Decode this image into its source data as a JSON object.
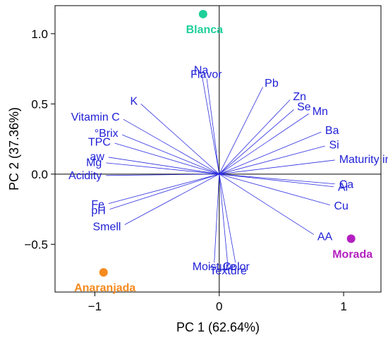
{
  "chart_data": {
    "type": "scatter",
    "subtype": "pca-biplot",
    "title": "",
    "xlabel": "PC 1 (62.64%)",
    "ylabel": "PC 2 (37.36%)",
    "xlim": [
      -1.32,
      1.3
    ],
    "ylim": [
      -0.84,
      1.2
    ],
    "x_ticks": [
      {
        "value": -1,
        "label": "−1"
      },
      {
        "value": 0,
        "label": "0"
      },
      {
        "value": 1,
        "label": "1"
      }
    ],
    "y_ticks": [
      {
        "value": 1.0,
        "label": "1.0"
      },
      {
        "value": 0.5,
        "label": "0.5"
      },
      {
        "value": 0.0,
        "label": "0.0"
      },
      {
        "value": -0.5,
        "label": "−0.5"
      }
    ],
    "reference_lines": {
      "x": 0,
      "y": 0
    },
    "grid": false,
    "loading_color": "#2e2ee0",
    "loadings": [
      {
        "name": "Na",
        "x": -0.14,
        "y": 0.71
      },
      {
        "name": "Flavor",
        "x": -0.1,
        "y": 0.68
      },
      {
        "name": "K",
        "x": -0.63,
        "y": 0.5
      },
      {
        "name": "Vitamin C",
        "x": -0.77,
        "y": 0.39
      },
      {
        "name": "°Brix",
        "x": -0.78,
        "y": 0.28
      },
      {
        "name": "TPC",
        "x": -0.84,
        "y": 0.22
      },
      {
        "name": "aw",
        "x": -0.89,
        "y": 0.12
      },
      {
        "name": "Mg",
        "x": -0.91,
        "y": 0.08
      },
      {
        "name": "Acidity",
        "x": -0.91,
        "y": -0.01
      },
      {
        "name": "Fe",
        "x": -0.89,
        "y": -0.21
      },
      {
        "name": "pH",
        "x": -0.88,
        "y": -0.25
      },
      {
        "name": "Smell",
        "x": -0.76,
        "y": -0.36
      },
      {
        "name": "Pb",
        "x": 0.35,
        "y": 0.62
      },
      {
        "name": "Zn",
        "x": 0.57,
        "y": 0.53
      },
      {
        "name": "Se",
        "x": 0.6,
        "y": 0.46
      },
      {
        "name": "Mn",
        "x": 0.72,
        "y": 0.43
      },
      {
        "name": "Ba",
        "x": 0.82,
        "y": 0.3
      },
      {
        "name": "Si",
        "x": 0.85,
        "y": 0.2
      },
      {
        "name": "Maturity index",
        "x": 0.93,
        "y": 0.1
      },
      {
        "name": "Ca",
        "x": 0.93,
        "y": -0.07
      },
      {
        "name": "Al",
        "x": 0.92,
        "y": -0.09
      },
      {
        "name": "Cu",
        "x": 0.89,
        "y": -0.22
      },
      {
        "name": "AA",
        "x": 0.76,
        "y": -0.43
      },
      {
        "name": "Moisture",
        "x": -0.04,
        "y": -0.63
      },
      {
        "name": "Texture",
        "x": 0.07,
        "y": -0.66
      },
      {
        "name": "Color",
        "x": 0.13,
        "y": -0.63
      }
    ],
    "scores": [
      {
        "name": "Blanca",
        "x": -0.13,
        "y": 1.14,
        "color": "#1fcf9a"
      },
      {
        "name": "Morada",
        "x": 1.06,
        "y": -0.46,
        "color": "#b31fbf"
      },
      {
        "name": "Anaranjada",
        "x": -0.93,
        "y": -0.7,
        "color": "#f58a1f"
      }
    ]
  }
}
